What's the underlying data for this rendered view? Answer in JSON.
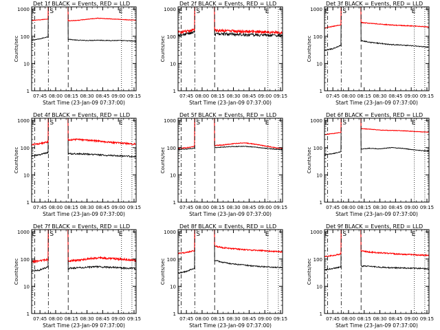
{
  "figure": {
    "background": "#ffffff",
    "series_colors": {
      "events": "#000000",
      "lld": "#ff0000"
    },
    "marker_labels": {
      "start": "E",
      "saa": "S",
      "end": "E"
    },
    "x_tick_labels": [
      "07:45",
      "08:00",
      "08:15",
      "08:30",
      "08:45",
      "09:00",
      "09:15"
    ],
    "y_tick_labels": [
      "1",
      "10",
      "100",
      "1000"
    ]
  },
  "chart_data": [
    {
      "type": "line",
      "title": "Det 1f BLACK = Events, RED = LLD",
      "xlabel": "Start Time (23-Jan-09 07:37:00)",
      "ylabel": "Counts/sec",
      "x_units": "HH:MM",
      "xlim": [
        "07:37",
        "09:17"
      ],
      "ylim": [
        1,
        1200
      ],
      "y_scale": "log",
      "markers": {
        "start": "07:40",
        "saa_in": "07:53",
        "saa_out": "08:12",
        "end": "09:03",
        "end_dotted": "09:13"
      },
      "series": [
        {
          "key": "events",
          "x": [
            "07:37",
            "07:45",
            "07:52",
            "08:12",
            "08:20",
            "08:30",
            "08:40",
            "08:50",
            "09:00",
            "09:10",
            "09:16"
          ],
          "values": [
            72,
            80,
            95,
            78,
            72,
            70,
            72,
            70,
            70,
            68,
            66
          ],
          "noise": 0.03
        },
        {
          "key": "lld",
          "x": [
            "07:37",
            "07:45",
            "07:52",
            "08:12",
            "08:20",
            "08:30",
            "08:40",
            "08:50",
            "09:00",
            "09:10",
            "09:16"
          ],
          "values": [
            380,
            400,
            430,
            370,
            380,
            420,
            460,
            440,
            420,
            400,
            390
          ],
          "noise": 0.02
        }
      ]
    },
    {
      "type": "line",
      "title": "Det 2f BLACK = Events, RED = LLD",
      "xlabel": "Start Time (23-Jan-09 07:37:00)",
      "ylabel": "Counts/sec",
      "x_units": "HH:MM",
      "xlim": [
        "07:37",
        "09:17"
      ],
      "ylim": [
        1,
        1200
      ],
      "y_scale": "log",
      "markers": {
        "start": "07:40",
        "saa_in": "07:53",
        "saa_out": "08:12",
        "end": "09:03",
        "end_dotted": "09:13"
      },
      "series": [
        {
          "key": "events",
          "x": [
            "07:37",
            "07:45",
            "07:52",
            "08:12",
            "08:20",
            "08:30",
            "08:40",
            "08:50",
            "09:00",
            "09:10",
            "09:16"
          ],
          "values": [
            110,
            120,
            140,
            120,
            125,
            118,
            115,
            112,
            110,
            108,
            106
          ],
          "noise": 0.12
        },
        {
          "key": "lld",
          "x": [
            "07:37",
            "07:45",
            "07:52",
            "08:12",
            "08:20",
            "08:30",
            "08:40",
            "08:50",
            "09:00",
            "09:10",
            "09:16"
          ],
          "values": [
            140,
            150,
            170,
            160,
            165,
            155,
            150,
            148,
            145,
            140,
            138
          ],
          "noise": 0.12
        }
      ]
    },
    {
      "type": "line",
      "title": "Det 3f BLACK = Events, RED = LLD",
      "xlabel": "Start Time (23-Jan-09 07:37:00)",
      "ylabel": "Counts/sec",
      "x_units": "HH:MM",
      "xlim": [
        "07:37",
        "09:17"
      ],
      "ylim": [
        1,
        1200
      ],
      "y_scale": "log",
      "markers": {
        "start": "07:40",
        "saa_in": "07:53",
        "saa_out": "08:12",
        "end": "09:03",
        "end_dotted": "09:13"
      },
      "series": [
        {
          "key": "events",
          "x": [
            "07:37",
            "07:45",
            "07:52",
            "08:12",
            "08:20",
            "08:30",
            "08:40",
            "08:50",
            "09:00",
            "09:10",
            "09:16"
          ],
          "values": [
            30,
            35,
            45,
            70,
            60,
            55,
            50,
            48,
            45,
            42,
            40
          ],
          "noise": 0.04
        },
        {
          "key": "lld",
          "x": [
            "07:37",
            "07:45",
            "07:52",
            "08:12",
            "08:20",
            "08:30",
            "08:40",
            "08:50",
            "09:00",
            "09:10",
            "09:16"
          ],
          "values": [
            200,
            230,
            260,
            320,
            300,
            280,
            260,
            250,
            240,
            230,
            220
          ],
          "noise": 0.03
        }
      ]
    },
    {
      "type": "line",
      "title": "Det 4f BLACK = Events, RED = LLD",
      "xlabel": "Start Time (23-Jan-09 07:37:00)",
      "ylabel": "Counts/sec",
      "x_units": "HH:MM",
      "xlim": [
        "07:37",
        "09:17"
      ],
      "ylim": [
        1,
        1200
      ],
      "y_scale": "log",
      "markers": {
        "start": "07:40",
        "saa_in": "07:53",
        "saa_out": "08:12",
        "end": "09:03",
        "end_dotted": "09:13"
      },
      "series": [
        {
          "key": "events",
          "x": [
            "07:37",
            "07:45",
            "07:52",
            "08:12",
            "08:20",
            "08:30",
            "08:40",
            "08:50",
            "09:00",
            "09:10",
            "09:16"
          ],
          "values": [
            50,
            55,
            65,
            60,
            60,
            58,
            55,
            52,
            50,
            48,
            46
          ],
          "noise": 0.06
        },
        {
          "key": "lld",
          "x": [
            "07:37",
            "07:45",
            "07:52",
            "08:12",
            "08:20",
            "08:30",
            "08:40",
            "08:50",
            "09:00",
            "09:10",
            "09:16"
          ],
          "values": [
            130,
            140,
            160,
            190,
            200,
            190,
            175,
            160,
            150,
            140,
            135
          ],
          "noise": 0.06
        }
      ]
    },
    {
      "type": "line",
      "title": "Det 5f BLACK = Events, RED = LLD",
      "xlabel": "Start Time (23-Jan-09 07:37:00)",
      "ylabel": "Counts/sec",
      "x_units": "HH:MM",
      "xlim": [
        "07:37",
        "09:17"
      ],
      "ylim": [
        1,
        1200
      ],
      "y_scale": "log",
      "markers": {
        "start": "07:40",
        "saa_in": "07:53",
        "saa_out": "08:12",
        "end": "09:03",
        "end_dotted": "09:13"
      },
      "series": [
        {
          "key": "events",
          "x": [
            "07:37",
            "07:45",
            "07:52",
            "08:12",
            "08:20",
            "08:30",
            "08:40",
            "08:50",
            "09:00",
            "09:10",
            "09:16"
          ],
          "values": [
            85,
            88,
            95,
            100,
            105,
            110,
            112,
            105,
            95,
            88,
            85
          ],
          "noise": 0.03
        },
        {
          "key": "lld",
          "x": [
            "07:37",
            "07:45",
            "07:52",
            "08:12",
            "08:20",
            "08:30",
            "08:40",
            "08:50",
            "09:00",
            "09:10",
            "09:16"
          ],
          "values": [
            95,
            100,
            110,
            120,
            125,
            140,
            150,
            135,
            115,
            100,
            95
          ],
          "noise": 0.03
        }
      ]
    },
    {
      "type": "line",
      "title": "Det 6f BLACK = Events, RED = LLD",
      "xlabel": "Start Time (23-Jan-09 07:37:00)",
      "ylabel": "Counts/sec",
      "x_units": "HH:MM",
      "xlim": [
        "07:37",
        "09:17"
      ],
      "ylim": [
        1,
        1200
      ],
      "y_scale": "log",
      "markers": {
        "start": "07:40",
        "saa_in": "07:53",
        "saa_out": "08:12",
        "end": "09:03",
        "end_dotted": "09:13"
      },
      "series": [
        {
          "key": "events",
          "x": [
            "07:37",
            "07:45",
            "07:52",
            "08:12",
            "08:20",
            "08:30",
            "08:40",
            "08:50",
            "09:00",
            "09:10",
            "09:16"
          ],
          "values": [
            55,
            60,
            70,
            90,
            95,
            90,
            100,
            95,
            85,
            78,
            75
          ],
          "noise": 0.03
        },
        {
          "key": "lld",
          "x": [
            "07:37",
            "07:45",
            "07:52",
            "08:12",
            "08:20",
            "08:30",
            "08:40",
            "08:50",
            "09:00",
            "09:10",
            "09:16"
          ],
          "values": [
            300,
            330,
            360,
            500,
            480,
            440,
            430,
            420,
            400,
            380,
            370
          ],
          "noise": 0.02
        }
      ]
    },
    {
      "type": "line",
      "title": "Det 7f BLACK = Events, RED = LLD",
      "xlabel": "Start Time (23-Jan-09 07:37:00)",
      "ylabel": "Counts/sec",
      "x_units": "HH:MM",
      "xlim": [
        "07:37",
        "09:17"
      ],
      "ylim": [
        1,
        1200
      ],
      "y_scale": "log",
      "markers": {
        "start": "07:40",
        "saa_in": "07:53",
        "saa_out": "08:12",
        "end": "09:03",
        "end_dotted": "09:13"
      },
      "series": [
        {
          "key": "events",
          "x": [
            "07:37",
            "07:45",
            "07:52",
            "08:12",
            "08:20",
            "08:30",
            "08:40",
            "08:50",
            "09:00",
            "09:10",
            "09:16"
          ],
          "values": [
            35,
            40,
            50,
            45,
            48,
            50,
            52,
            50,
            48,
            46,
            45
          ],
          "noise": 0.07
        },
        {
          "key": "lld",
          "x": [
            "07:37",
            "07:45",
            "07:52",
            "08:12",
            "08:20",
            "08:30",
            "08:40",
            "08:50",
            "09:00",
            "09:10",
            "09:16"
          ],
          "values": [
            80,
            85,
            95,
            85,
            90,
            100,
            110,
            105,
            100,
            95,
            90
          ],
          "noise": 0.08
        }
      ]
    },
    {
      "type": "line",
      "title": "Det 8f BLACK = Events, RED = LLD",
      "xlabel": "Start Time (23-Jan-09 07:37:00)",
      "ylabel": "Counts/sec",
      "x_units": "HH:MM",
      "xlim": [
        "07:37",
        "09:17"
      ],
      "ylim": [
        1,
        1200
      ],
      "y_scale": "log",
      "markers": {
        "start": "07:40",
        "saa_in": "07:53",
        "saa_out": "08:12",
        "end": "09:03",
        "end_dotted": "09:13"
      },
      "series": [
        {
          "key": "events",
          "x": [
            "07:37",
            "07:45",
            "07:52",
            "08:12",
            "08:20",
            "08:30",
            "08:40",
            "08:50",
            "09:00",
            "09:10",
            "09:16"
          ],
          "values": [
            30,
            35,
            45,
            90,
            75,
            65,
            60,
            55,
            52,
            50,
            48
          ],
          "noise": 0.05
        },
        {
          "key": "lld",
          "x": [
            "07:37",
            "07:45",
            "07:52",
            "08:12",
            "08:20",
            "08:30",
            "08:40",
            "08:50",
            "09:00",
            "09:10",
            "09:16"
          ],
          "values": [
            160,
            175,
            200,
            300,
            260,
            240,
            220,
            210,
            200,
            190,
            185
          ],
          "noise": 0.05
        }
      ]
    },
    {
      "type": "line",
      "title": "Det 9f BLACK = Events, RED = LLD",
      "xlabel": "Start Time (23-Jan-09 07:37:00)",
      "ylabel": "Counts/sec",
      "x_units": "HH:MM",
      "xlim": [
        "07:37",
        "09:17"
      ],
      "ylim": [
        1,
        1200
      ],
      "y_scale": "log",
      "markers": {
        "start": "07:40",
        "saa_in": "07:53",
        "saa_out": "08:12",
        "end": "09:03",
        "end_dotted": "09:13"
      },
      "series": [
        {
          "key": "events",
          "x": [
            "07:37",
            "07:45",
            "07:52",
            "08:12",
            "08:20",
            "08:30",
            "08:40",
            "08:50",
            "09:00",
            "09:10",
            "09:16"
          ],
          "values": [
            40,
            45,
            50,
            55,
            55,
            50,
            48,
            47,
            46,
            45,
            44
          ],
          "noise": 0.05
        },
        {
          "key": "lld",
          "x": [
            "07:37",
            "07:45",
            "07:52",
            "08:12",
            "08:20",
            "08:30",
            "08:40",
            "08:50",
            "09:00",
            "09:10",
            "09:16"
          ],
          "values": [
            120,
            135,
            150,
            200,
            180,
            170,
            160,
            150,
            145,
            140,
            138
          ],
          "noise": 0.05
        }
      ]
    }
  ]
}
